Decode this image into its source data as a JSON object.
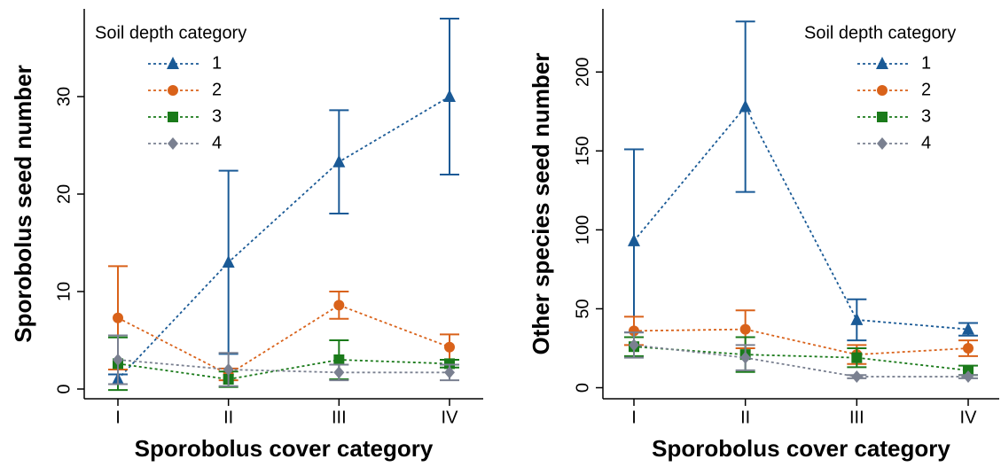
{
  "chart_data": [
    {
      "type": "line",
      "legend_title": "Soil depth category",
      "legend_position": "upper left",
      "y_label": "Sporobolus seed number",
      "x_label": "Sporobolus cover category",
      "categories": [
        "I",
        "II",
        "III",
        "IV"
      ],
      "ylim": [
        -1,
        39
      ],
      "yticks": [
        0,
        10,
        20,
        30
      ],
      "series": [
        {
          "name": "1",
          "color": "#1a5a96",
          "marker": "triangle",
          "values": [
            1.0,
            13.0,
            23.3,
            30.0
          ],
          "errors": [
            0.5,
            9.4,
            5.3,
            8.0
          ]
        },
        {
          "name": "2",
          "color": "#d9621a",
          "marker": "circle",
          "values": [
            7.3,
            1.5,
            8.6,
            4.3
          ],
          "errors": [
            5.3,
            0.6,
            1.4,
            1.3
          ]
        },
        {
          "name": "3",
          "color": "#1a7a1a",
          "marker": "square",
          "values": [
            2.6,
            1.0,
            3.0,
            2.6
          ],
          "errors": [
            2.7,
            0.8,
            2.0,
            0.4
          ]
        },
        {
          "name": "4",
          "color": "#7a8090",
          "marker": "diamond",
          "values": [
            3.0,
            2.0,
            1.7,
            1.7
          ],
          "errors": [
            2.5,
            1.7,
            0.8,
            0.8
          ]
        }
      ]
    },
    {
      "type": "line",
      "legend_title": "Soil depth category",
      "legend_position": "upper right",
      "y_label": "Other species seed number",
      "x_label": "Sporobolus cover category",
      "categories": [
        "I",
        "II",
        "III",
        "IV"
      ],
      "ylim": [
        -7,
        240
      ],
      "yticks": [
        0,
        50,
        100,
        150,
        200
      ],
      "series": [
        {
          "name": "1",
          "color": "#1a5a96",
          "marker": "triangle",
          "values": [
            93,
            178,
            43,
            37
          ],
          "errors": [
            58,
            54,
            13,
            4
          ]
        },
        {
          "name": "2",
          "color": "#d9621a",
          "marker": "circle",
          "values": [
            36,
            37,
            21,
            25
          ],
          "errors": [
            9,
            12,
            6,
            5
          ]
        },
        {
          "name": "3",
          "color": "#1a7a1a",
          "marker": "square",
          "values": [
            26,
            21,
            19,
            11
          ],
          "errors": [
            6,
            11,
            6,
            3
          ]
        },
        {
          "name": "4",
          "color": "#7a8090",
          "marker": "diamond",
          "values": [
            27,
            19,
            7,
            7
          ],
          "errors": [
            8,
            8,
            1,
            1
          ]
        }
      ]
    }
  ]
}
